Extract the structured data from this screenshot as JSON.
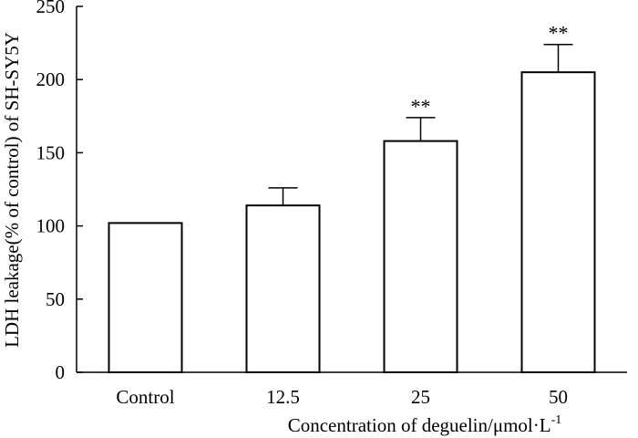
{
  "chart_data": {
    "type": "bar",
    "categories": [
      "Control",
      "12.5",
      "25",
      "50"
    ],
    "values": [
      102,
      114,
      158,
      205
    ],
    "errors": [
      0,
      12,
      16,
      19
    ],
    "significance": [
      "",
      "",
      "**",
      "**"
    ],
    "xlabel": "Concentration of deguelin/μmol·L",
    "xlabel_superscript": "-1",
    "ylabel": "LDH leakage(% of control) of SH-SY5Y",
    "ylim": [
      0,
      250
    ],
    "yticks": [
      0,
      50,
      100,
      150,
      200,
      250
    ],
    "grid": false,
    "bar_fill": "#ffffff",
    "bar_stroke": "#000000"
  }
}
